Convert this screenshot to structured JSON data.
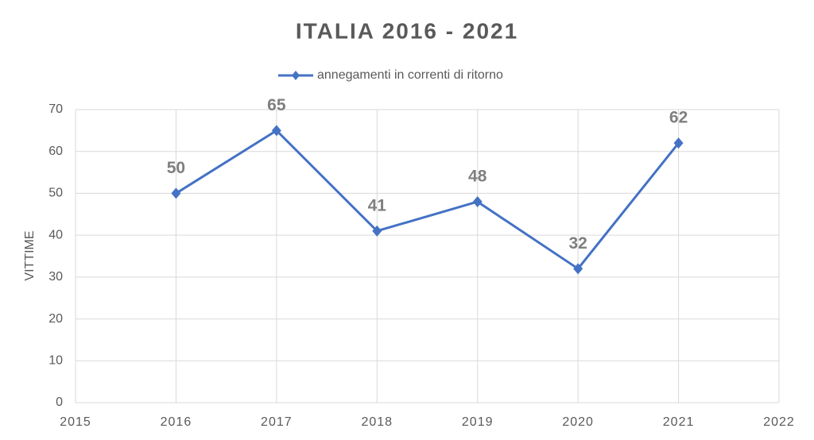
{
  "chart_data": {
    "type": "line",
    "title": "ITALIA 2016 - 2021",
    "ylabel": "VITTIME",
    "x": [
      2016,
      2017,
      2018,
      2019,
      2020,
      2021
    ],
    "series": [
      {
        "name": "annegamenti in correnti di ritorno",
        "color": "#4472c4",
        "values": [
          50,
          65,
          41,
          48,
          32,
          62
        ]
      }
    ],
    "xlim": [
      2015,
      2022
    ],
    "xticks": [
      2015,
      2016,
      2017,
      2018,
      2019,
      2020,
      2021,
      2022
    ],
    "ylim": [
      0,
      70
    ],
    "yticks": [
      0,
      10,
      20,
      30,
      40,
      50,
      60,
      70
    ],
    "grid": true,
    "legend": "top",
    "data_labels": true
  }
}
